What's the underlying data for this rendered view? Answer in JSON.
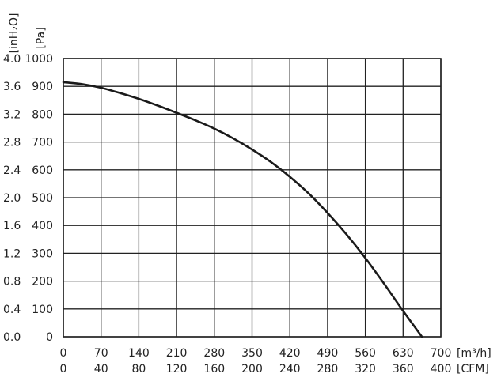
{
  "chart_data": {
    "type": "line",
    "title": "",
    "x_primary": {
      "unit_label": "[m³/h]",
      "range": [
        0,
        700
      ],
      "ticks": [
        "0",
        "70",
        "140",
        "210",
        "280",
        "350",
        "420",
        "490",
        "560",
        "630",
        "700"
      ]
    },
    "x_secondary": {
      "unit_label": "[CFM]",
      "ticks": [
        "0",
        "40",
        "80",
        "120",
        "160",
        "200",
        "240",
        "280",
        "320",
        "360",
        "400"
      ]
    },
    "y_primary": {
      "unit_label": "[Pa]",
      "range": [
        0,
        1000
      ],
      "ticks": [
        "0",
        "100",
        "200",
        "300",
        "400",
        "500",
        "600",
        "700",
        "800",
        "900",
        "1000"
      ]
    },
    "y_secondary": {
      "unit_label": "[inH₂O]",
      "ticks": [
        "0.0",
        "0.4",
        "0.8",
        "1.2",
        "1.6",
        "2.0",
        "2.4",
        "2.8",
        "3.2",
        "3.6",
        "4.0"
      ]
    },
    "grid": true,
    "series": [
      {
        "x": [
          0,
          35,
          70,
          105,
          140,
          175,
          210,
          245,
          280,
          315,
          350,
          385,
          420,
          455,
          490,
          525,
          560,
          595,
          630,
          665
        ],
        "y": [
          915,
          908,
          895,
          876,
          855,
          831,
          805,
          778,
          748,
          713,
          673,
          628,
          575,
          515,
          445,
          368,
          283,
          190,
          93,
          0
        ]
      }
    ]
  }
}
